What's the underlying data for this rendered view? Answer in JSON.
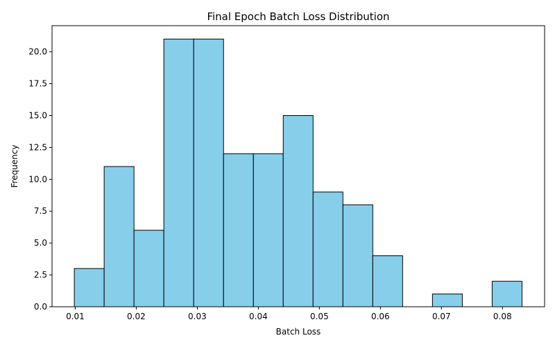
{
  "chart_data": {
    "type": "bar",
    "title": "Final Epoch Batch Loss Distribution",
    "xlabel": "Batch Loss",
    "ylabel": "Frequency",
    "bin_edges": [
      0.00985,
      0.01474,
      0.01963,
      0.02452,
      0.02941,
      0.0343,
      0.03919,
      0.04408,
      0.04897,
      0.05386,
      0.05875,
      0.06364,
      0.06853,
      0.07342,
      0.07831,
      0.0832
    ],
    "values": [
      3,
      11,
      6,
      21,
      21,
      12,
      12,
      15,
      9,
      8,
      4,
      0,
      1,
      0,
      2
    ],
    "xlim": [
      0.0062,
      0.0869
    ],
    "ylim": [
      0,
      22.05
    ],
    "xticks": [
      0.01,
      0.02,
      0.03,
      0.04,
      0.05,
      0.06,
      0.07,
      0.08
    ],
    "xtick_labels": [
      "0.01",
      "0.02",
      "0.03",
      "0.04",
      "0.05",
      "0.06",
      "0.07",
      "0.08"
    ],
    "yticks": [
      0,
      2.5,
      5,
      7.5,
      10,
      12.5,
      15,
      17.5,
      20
    ],
    "ytick_labels": [
      "0.0",
      "2.5",
      "5.0",
      "7.5",
      "10.0",
      "12.5",
      "15.0",
      "17.5",
      "20.0"
    ],
    "bar_color": "#87CEEB",
    "edge_color": "#000000",
    "grid": false,
    "legend": "none"
  }
}
